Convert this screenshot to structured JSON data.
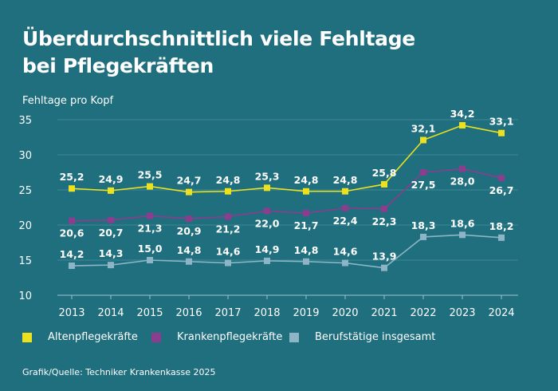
{
  "title_lines": [
    "Überdurchschnittlich viele Fehltage",
    "bei Pflegekräften"
  ],
  "source": "Grafik/Quelle: Techniker Krankenkasse 2025",
  "colors": {
    "background": "#1f6f7e",
    "gridline": "#3f8795",
    "altenpflege": "#ece11f",
    "krankenpflege": "#8b3d8e",
    "berufstaetige": "#8db5c6"
  },
  "chart_data": {
    "type": "line",
    "ylabel": "Fehltage pro Kopf",
    "xlabel": "",
    "ylim": [
      10,
      35
    ],
    "yticks": [
      10,
      15,
      20,
      25,
      30,
      35
    ],
    "grid": true,
    "legend_position": "bottom",
    "x": [
      "2013",
      "2014",
      "2015",
      "2016",
      "2017",
      "2018",
      "2019",
      "2020",
      "2021",
      "2022",
      "2023",
      "2024"
    ],
    "series": [
      {
        "name": "Altenpflegekräfte",
        "color": "#ece11f",
        "values": [
          25.2,
          24.9,
          25.5,
          24.7,
          24.8,
          25.3,
          24.8,
          24.8,
          25.8,
          32.1,
          34.2,
          33.1
        ],
        "labels": [
          "25,2",
          "24,9",
          "25,5",
          "24,7",
          "24,8",
          "25,3",
          "24,8",
          "24,8",
          "25,8",
          "32,1",
          "34,2",
          "33,1"
        ]
      },
      {
        "name": "Krankenpflegekräfte",
        "color": "#8b3d8e",
        "values": [
          20.6,
          20.7,
          21.3,
          20.9,
          21.2,
          22.0,
          21.7,
          22.4,
          22.3,
          27.5,
          28.0,
          26.7
        ],
        "labels": [
          "20,6",
          "20,7",
          "21,3",
          "20,9",
          "21,2",
          "22,0",
          "21,7",
          "22,4",
          "22,3",
          "27,5",
          "28,0",
          "26,7"
        ]
      },
      {
        "name": "Berufstätige insgesamt",
        "color": "#8db5c6",
        "values": [
          14.2,
          14.3,
          15.0,
          14.8,
          14.6,
          14.9,
          14.8,
          14.6,
          13.9,
          18.3,
          18.6,
          18.2
        ],
        "labels": [
          "14,2",
          "14,3",
          "15,0",
          "14,8",
          "14,6",
          "14,9",
          "14,8",
          "14,6",
          "13,9",
          "18,3",
          "18,6",
          "18,2"
        ]
      }
    ]
  }
}
